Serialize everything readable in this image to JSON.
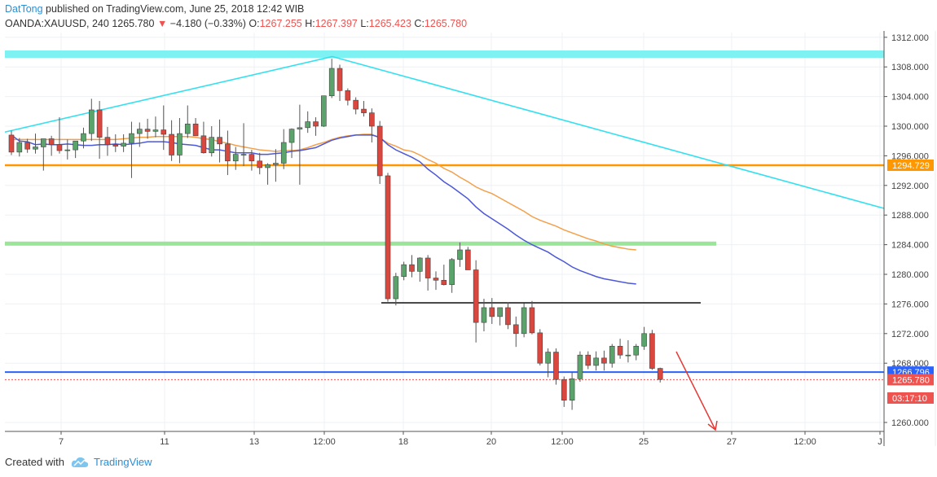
{
  "header": {
    "author": "DatTong",
    "published_text": "published on TradingView.com, June 25, 2018 12:42 WIB",
    "symbol": "OANDA:XAUUSD, 240",
    "last": "1265.780",
    "change_arrow": "▼",
    "change": "−4.180 (−0.33%)",
    "o_label": "O:",
    "o_value": "1267.255",
    "h_label": "H:",
    "h_value": "1267.397",
    "l_label": "L:",
    "l_value": "1265.423",
    "c_label": "C:",
    "c_value": "1265.780"
  },
  "footer": {
    "created_with": "Created with",
    "brand": "TradingView"
  },
  "chart_data": {
    "type": "candlestick",
    "y_ticks": [
      "1312.000",
      "1308.000",
      "1304.000",
      "1300.000",
      "1296.000",
      "1292.000",
      "1288.000",
      "1284.000",
      "1280.000",
      "1276.000",
      "1272.000",
      "1268.000",
      "1260.000"
    ],
    "ylim": [
      1258,
      1313
    ],
    "x_ticks": [
      "7",
      "11",
      "13",
      "12:00",
      "18",
      "20",
      "12:00",
      "25",
      "27",
      "12:00",
      "J"
    ],
    "price_labels": [
      {
        "text": "1294.729",
        "color": "#ff9800",
        "value": 1294.729
      },
      {
        "text": "1266.796",
        "color": "#2962ff",
        "value": 1266.796
      },
      {
        "text": "1265.780",
        "color": "#ef5350",
        "value": 1265.78
      },
      {
        "text": "03:17:10",
        "color": "#ef5350",
        "value": 1263.3
      }
    ],
    "colors": {
      "up": "#5aa36a",
      "down": "#d9473f",
      "fast_ma": "#4c58d8",
      "slow_ma": "#f4a04a",
      "trend": "#33e0f0",
      "resistance_zone": "#7ef2f2",
      "support_zone": "#9be59b",
      "level": "#ff9800",
      "blue_level": "#2962ff"
    },
    "candles": [
      [
        1298.8,
        1299.4,
        1296.1,
        1296.5
      ],
      [
        1296.5,
        1298.4,
        1295.9,
        1297.8
      ],
      [
        1297.8,
        1298.3,
        1296.4,
        1296.9
      ],
      [
        1296.9,
        1299.0,
        1296.3,
        1297.2
      ],
      [
        1297.2,
        1298.2,
        1294.0,
        1298.3
      ],
      [
        1298.3,
        1298.7,
        1296.0,
        1297.5
      ],
      [
        1297.5,
        1301.2,
        1296.3,
        1296.7
      ],
      [
        1296.7,
        1298.2,
        1295.5,
        1296.8
      ],
      [
        1296.8,
        1297.7,
        1295.7,
        1298.0
      ],
      [
        1298.0,
        1299.8,
        1297.0,
        1299.0
      ],
      [
        1299.0,
        1303.7,
        1298.0,
        1302.2
      ],
      [
        1302.2,
        1303.4,
        1295.6,
        1298.5
      ],
      [
        1298.5,
        1299.9,
        1296.0,
        1297.5
      ],
      [
        1297.5,
        1298.9,
        1296.5,
        1297.3
      ],
      [
        1297.3,
        1298.9,
        1296.5,
        1297.7
      ],
      [
        1297.7,
        1300.6,
        1293.0,
        1299.0
      ],
      [
        1299.0,
        1300.5,
        1297.2,
        1299.6
      ],
      [
        1299.6,
        1301.0,
        1298.3,
        1299.3
      ],
      [
        1299.3,
        1301.3,
        1298.5,
        1299.5
      ],
      [
        1299.5,
        1302.8,
        1296.8,
        1298.9
      ],
      [
        1298.9,
        1300.8,
        1295.3,
        1296.1
      ],
      [
        1296.1,
        1301.1,
        1295.0,
        1299.0
      ],
      [
        1299.0,
        1302.8,
        1298.4,
        1300.3
      ],
      [
        1300.3,
        1301.1,
        1298.9,
        1298.7
      ],
      [
        1298.7,
        1300.6,
        1296.3,
        1296.4
      ],
      [
        1296.4,
        1300.0,
        1295.9,
        1298.5
      ],
      [
        1298.5,
        1300.9,
        1295.1,
        1297.6
      ],
      [
        1297.6,
        1299.4,
        1293.4,
        1295.3
      ],
      [
        1295.3,
        1297.2,
        1294.1,
        1296.2
      ],
      [
        1296.2,
        1300.4,
        1294.6,
        1296.2
      ],
      [
        1296.2,
        1296.8,
        1294.0,
        1295.3
      ],
      [
        1295.3,
        1296.4,
        1293.5,
        1294.4
      ],
      [
        1294.4,
        1295.0,
        1292.1,
        1294.8
      ],
      [
        1294.8,
        1296.9,
        1292.5,
        1295.0
      ],
      [
        1295.0,
        1299.6,
        1294.2,
        1297.8
      ],
      [
        1297.8,
        1299.7,
        1295.7,
        1299.6
      ],
      [
        1299.6,
        1302.9,
        1292.1,
        1299.8
      ],
      [
        1299.8,
        1302.0,
        1299.1,
        1300.6
      ],
      [
        1300.6,
        1301.2,
        1298.7,
        1300.0
      ],
      [
        1300.0,
        1304.1,
        1299.9,
        1304.1
      ],
      [
        1304.1,
        1309.1,
        1303.8,
        1307.8
      ],
      [
        1307.8,
        1308.3,
        1303.4,
        1304.8
      ],
      [
        1304.8,
        1305.1,
        1302.8,
        1303.5
      ],
      [
        1303.5,
        1303.9,
        1301.6,
        1302.3
      ],
      [
        1302.3,
        1303.4,
        1301.3,
        1301.8
      ],
      [
        1301.8,
        1302.4,
        1297.8,
        1300.0
      ],
      [
        1300.0,
        1300.7,
        1292.2,
        1293.3
      ],
      [
        1293.3,
        1293.7,
        1276.3,
        1276.7
      ],
      [
        1276.7,
        1280.2,
        1275.8,
        1279.7
      ],
      [
        1279.7,
        1281.7,
        1279.2,
        1281.3
      ],
      [
        1281.3,
        1282.6,
        1279.6,
        1280.4
      ],
      [
        1280.4,
        1282.3,
        1279.0,
        1282.2
      ],
      [
        1282.2,
        1282.6,
        1277.8,
        1279.5
      ],
      [
        1279.5,
        1280.4,
        1277.9,
        1279.2
      ],
      [
        1279.2,
        1281.3,
        1278.5,
        1278.6
      ],
      [
        1278.6,
        1282.2,
        1277.5,
        1282.0
      ],
      [
        1282.0,
        1284.3,
        1281.0,
        1283.3
      ],
      [
        1283.3,
        1283.7,
        1280.9,
        1280.6
      ],
      [
        1280.6,
        1281.9,
        1270.8,
        1273.5
      ],
      [
        1273.5,
        1276.7,
        1272.3,
        1275.5
      ],
      [
        1275.5,
        1276.8,
        1273.3,
        1274.3
      ],
      [
        1274.3,
        1275.1,
        1273.1,
        1275.5
      ],
      [
        1275.5,
        1276.2,
        1272.6,
        1273.2
      ],
      [
        1273.2,
        1274.3,
        1270.2,
        1272.0
      ],
      [
        1272.0,
        1276.1,
        1271.5,
        1275.5
      ],
      [
        1275.5,
        1276.4,
        1271.9,
        1272.1
      ],
      [
        1272.1,
        1272.6,
        1267.7,
        1268.0
      ],
      [
        1268.0,
        1270.0,
        1266.1,
        1269.5
      ],
      [
        1269.5,
        1270.0,
        1265.1,
        1265.8
      ],
      [
        1265.8,
        1266.2,
        1262.1,
        1263.0
      ],
      [
        1263.0,
        1266.8,
        1261.7,
        1265.9
      ],
      [
        1265.9,
        1269.6,
        1265.5,
        1269.1
      ],
      [
        1269.1,
        1269.6,
        1267.2,
        1267.7
      ],
      [
        1267.7,
        1269.6,
        1267.0,
        1268.7
      ],
      [
        1268.7,
        1269.7,
        1267.0,
        1268.0
      ],
      [
        1268.0,
        1270.6,
        1267.4,
        1270.3
      ],
      [
        1270.3,
        1271.3,
        1268.6,
        1269.1
      ],
      [
        1269.1,
        1271.1,
        1268.1,
        1269.1
      ],
      [
        1269.1,
        1270.6,
        1268.4,
        1270.3
      ],
      [
        1270.3,
        1272.9,
        1269.8,
        1272.0
      ],
      [
        1272.0,
        1272.5,
        1267.1,
        1267.3
      ],
      [
        1267.3,
        1267.4,
        1265.4,
        1265.8
      ]
    ],
    "fast_ma": [
      1298.8,
      1298.0,
      1297.9,
      1297.5,
      1297.6,
      1297.5,
      1297.5,
      1297.6,
      1297.5,
      1297.4,
      1297.4,
      1297.5,
      1297.5,
      1297.6,
      1297.5,
      1297.6,
      1297.7,
      1297.9,
      1297.9,
      1297.9,
      1297.8,
      1297.6,
      1297.5,
      1297.4,
      1297.1,
      1296.8,
      1296.8,
      1296.6,
      1296.4,
      1296.4,
      1296.4,
      1296.2,
      1296.2,
      1296.3,
      1296.4,
      1296.6,
      1296.7,
      1296.9,
      1297.1,
      1297.6,
      1298.1,
      1298.4,
      1298.6,
      1298.8,
      1298.8,
      1298.8,
      1298.5,
      1297.5,
      1296.8,
      1296.3,
      1295.8,
      1295.2,
      1294.2,
      1293.4,
      1292.5,
      1291.8,
      1291.0,
      1290.2,
      1289.1,
      1288.2,
      1287.5,
      1286.8,
      1286.1,
      1285.3,
      1284.6,
      1284.0,
      1283.5,
      1283.0,
      1282.3,
      1281.7,
      1281.0,
      1280.5,
      1280.1,
      1279.7,
      1279.4,
      1279.2,
      1279.0,
      1278.8,
      1278.7
    ],
    "slow_ma": [
      1298.2,
      1298.2,
      1298.2,
      1298.2,
      1298.2,
      1298.2,
      1298.2,
      1298.2,
      1298.2,
      1298.2,
      1298.2,
      1298.2,
      1298.2,
      1298.2,
      1298.3,
      1298.4,
      1298.5,
      1298.5,
      1298.6,
      1298.6,
      1298.6,
      1298.6,
      1298.6,
      1298.5,
      1298.3,
      1298.2,
      1297.9,
      1297.7,
      1297.4,
      1297.2,
      1297.0,
      1296.8,
      1296.7,
      1296.6,
      1296.7,
      1296.7,
      1296.8,
      1297.1,
      1297.5,
      1297.8,
      1298.2,
      1298.5,
      1298.7,
      1298.8,
      1298.9,
      1298.9,
      1298.4,
      1297.7,
      1297.3,
      1296.8,
      1296.6,
      1296.1,
      1295.5,
      1295.0,
      1294.3,
      1293.8,
      1293.1,
      1292.5,
      1291.8,
      1291.3,
      1290.9,
      1290.3,
      1289.7,
      1289.1,
      1288.5,
      1287.8,
      1287.3,
      1286.9,
      1286.5,
      1286.0,
      1285.6,
      1285.2,
      1284.8,
      1284.5,
      1284.1,
      1283.8,
      1283.6,
      1283.4,
      1283.3
    ]
  }
}
